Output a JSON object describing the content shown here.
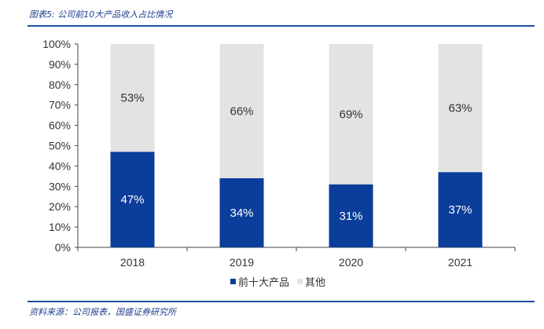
{
  "header": {
    "title": "图表5: 公司前10大产品收入占比情况"
  },
  "footer": {
    "source": "资料来源：公司报表，国盛证券研究所"
  },
  "chart_data": {
    "type": "bar",
    "stacked": true,
    "categories": [
      "2018",
      "2019",
      "2020",
      "2021"
    ],
    "series": [
      {
        "name": "前十大产品",
        "values": [
          47,
          34,
          31,
          37
        ],
        "labels": [
          "47%",
          "34%",
          "31%",
          "37%"
        ],
        "color": "#0b3d9a",
        "label_color": "#ffffff"
      },
      {
        "name": "其他",
        "values": [
          53,
          66,
          69,
          63
        ],
        "labels": [
          "53%",
          "66%",
          "69%",
          "63%"
        ],
        "color": "#e3e3e3",
        "label_color": "#333333"
      }
    ],
    "y_ticks": [
      "0%",
      "10%",
      "20%",
      "30%",
      "40%",
      "50%",
      "60%",
      "70%",
      "80%",
      "90%",
      "100%"
    ],
    "ylim": [
      0,
      100
    ],
    "legend_position": "bottom",
    "grid": false
  }
}
